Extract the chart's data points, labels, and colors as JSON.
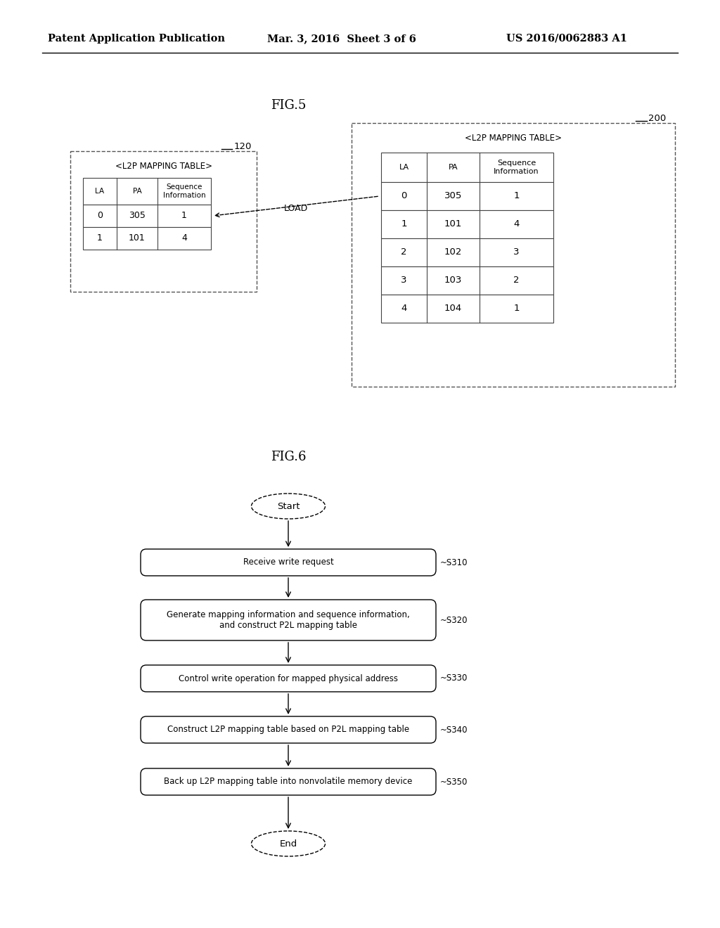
{
  "header_text": "Patent Application Publication",
  "header_date": "Mar. 3, 2016  Sheet 3 of 6",
  "header_patent": "US 2016/0062883 A1",
  "fig5_title": "FIG.5",
  "fig6_title": "FIG.6",
  "table1_label": "120",
  "table2_label": "200",
  "table_title": "<L2P MAPPING TABLE>",
  "table_cols": [
    "LA",
    "PA",
    "Sequence\nInformation"
  ],
  "table1_data": [
    [
      "0",
      "305",
      "1"
    ],
    [
      "1",
      "101",
      "4"
    ]
  ],
  "table2_data": [
    [
      "0",
      "305",
      "1"
    ],
    [
      "1",
      "101",
      "4"
    ],
    [
      "2",
      "102",
      "3"
    ],
    [
      "3",
      "103",
      "2"
    ],
    [
      "4",
      "104",
      "1"
    ]
  ],
  "load_label": "LOAD",
  "flowchart_steps": [
    {
      "label": "Start",
      "type": "oval",
      "step_id": ""
    },
    {
      "label": "Receive write request",
      "type": "rect",
      "step_id": "~S310"
    },
    {
      "label": "Generate mapping information and sequence information,\nand construct P2L mapping table",
      "type": "rect",
      "step_id": "~S320"
    },
    {
      "label": "Control write operation for mapped physical address",
      "type": "rect",
      "step_id": "~S330"
    },
    {
      "label": "Construct L2P mapping table based on P2L mapping table",
      "type": "rect",
      "step_id": "~S340"
    },
    {
      "label": "Back up L2P mapping table into nonvolatile memory device",
      "type": "rect",
      "step_id": "~S350"
    },
    {
      "label": "End",
      "type": "oval",
      "step_id": ""
    }
  ],
  "bg_color": "#ffffff"
}
